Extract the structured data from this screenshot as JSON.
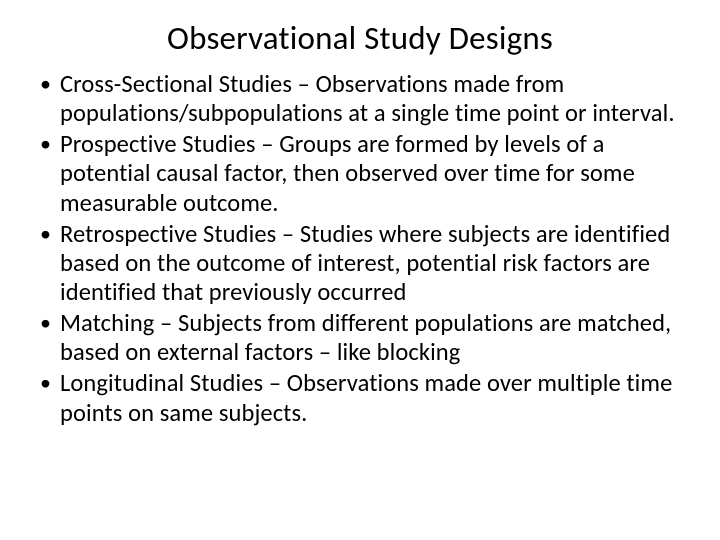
{
  "slide": {
    "title": "Observational Study Designs",
    "bullets": [
      "Cross-Sectional Studies – Observations made from populations/subpopulations at a single time point or interval.",
      "Prospective Studies – Groups are formed by levels of a potential causal factor, then observed over time for some measurable outcome.",
      "Retrospective Studies – Studies where subjects are identified based on the outcome of interest,  potential risk factors are identified that previously occurred",
      "Matching – Subjects from different populations are matched, based on external factors – like blocking",
      "Longitudinal Studies – Observations made over multiple time points on same subjects."
    ]
  },
  "style": {
    "background_color": "#ffffff",
    "text_color": "#000000",
    "title_fontsize": 33,
    "body_fontsize": 24.5,
    "font_family": "Calibri"
  }
}
